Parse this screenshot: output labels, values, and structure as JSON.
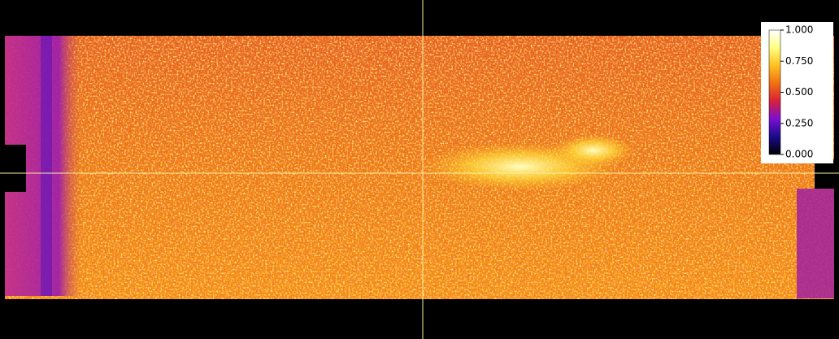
{
  "colorbar": {
    "lim": [
      0,
      1
    ],
    "ticks": [
      {
        "value": 1,
        "label": "1.000"
      },
      {
        "value": 0.75,
        "label": "0.750"
      },
      {
        "value": 0.5,
        "label": "0.500"
      },
      {
        "value": 0.25,
        "label": "0.250"
      },
      {
        "value": 0,
        "label": "0.000"
      }
    ],
    "colormap": [
      "#000000",
      "#1a0a8a",
      "#7a10d0",
      "#d8203a",
      "#f07010",
      "#ffc020",
      "#ffff80",
      "#ffffff"
    ]
  }
}
